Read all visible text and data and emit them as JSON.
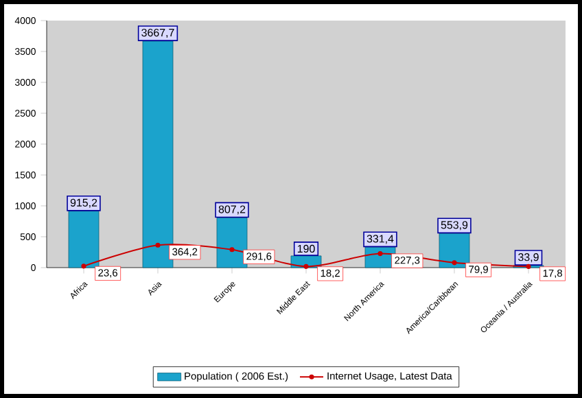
{
  "chart_data": {
    "type": "bar",
    "categories": [
      "Africa",
      "Asia",
      "Europe",
      "Middle East",
      "North America",
      "America/Caribbean",
      "Oceania / Australia"
    ],
    "series": [
      {
        "name": "Population ( 2006 Est.)",
        "color": "#1ba3cc",
        "values": [
          915.2,
          3667.7,
          807.2,
          190,
          331.4,
          553.9,
          33.9
        ],
        "value_labels": [
          "915,2",
          "3667,7",
          "807,2",
          "190",
          "331,4",
          "553,9",
          "33,9"
        ]
      },
      {
        "name": "Internet Usage, Latest Data",
        "type": "line",
        "color": "#cc0000",
        "marker": "circle",
        "values": [
          23.6,
          364.2,
          291.6,
          18.2,
          227.3,
          79.9,
          17.8
        ],
        "value_labels": [
          "23,6",
          "364,2",
          "291,6",
          "18,2",
          "227,3",
          "79,9",
          "17,8"
        ]
      }
    ],
    "ylim": [
      0,
      4000
    ],
    "yticks": [
      0,
      500,
      1000,
      1500,
      2000,
      2500,
      3000,
      3500,
      4000
    ],
    "legend": "bottom"
  }
}
